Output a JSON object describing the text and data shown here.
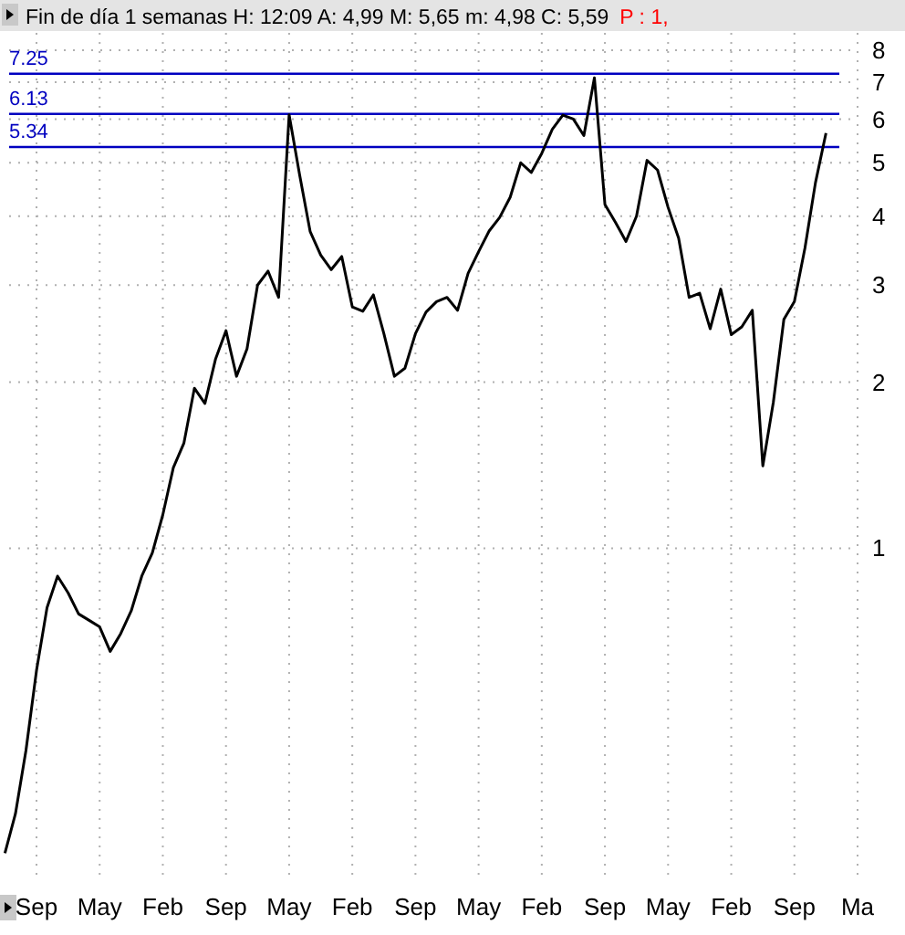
{
  "chart_data": {
    "type": "line",
    "title": "Fin de día 1 semanas H: 12:09 A: 4,99 M: 5,65 m: 4,98 C: 5,59",
    "subtitle": "P : 1,",
    "categories": [
      null,
      null,
      null,
      "Sep",
      null,
      null,
      null,
      null,
      null,
      "May",
      null,
      null,
      null,
      null,
      null,
      "Feb",
      null,
      null,
      null,
      null,
      null,
      "Sep",
      null,
      null,
      null,
      null,
      null,
      "May",
      null,
      null,
      null,
      null,
      null,
      "Feb",
      null,
      null,
      null,
      null,
      null,
      "Sep",
      null,
      null,
      null,
      null,
      null,
      "May",
      null,
      null,
      null,
      null,
      null,
      "Feb",
      null,
      null,
      null,
      null,
      null,
      "Sep",
      null,
      null,
      null,
      null,
      null,
      "May",
      null,
      null,
      null,
      null,
      null,
      "Feb",
      null,
      null,
      null,
      null,
      null,
      "Sep",
      null,
      null,
      null,
      null,
      null,
      "Ma"
    ],
    "series": [
      {
        "color": "#000000",
        "values": [
          0.28,
          0.33,
          0.43,
          0.6,
          0.78,
          0.89,
          0.83,
          0.76,
          0.74,
          0.72,
          0.65,
          0.7,
          0.77,
          0.89,
          0.98,
          1.15,
          1.4,
          1.55,
          1.95,
          1.83,
          2.2,
          2.48,
          2.05,
          2.3,
          3.0,
          3.18,
          2.85,
          6.11,
          4.75,
          3.75,
          3.4,
          3.2,
          3.38,
          2.74,
          2.69,
          2.88,
          2.45,
          2.05,
          2.12,
          2.45,
          2.68,
          2.8,
          2.85,
          2.7,
          3.15,
          3.45,
          3.76,
          3.98,
          4.33,
          5.0,
          4.8,
          5.2,
          5.75,
          6.1,
          6.0,
          5.6,
          7.13,
          4.2,
          3.9,
          3.6,
          4.0,
          5.05,
          4.85,
          4.15,
          3.65,
          2.85,
          2.9,
          2.5,
          2.95,
          2.44,
          2.52,
          2.7,
          1.41,
          1.84,
          2.6,
          2.8,
          3.5,
          4.6,
          5.66,
          null,
          null,
          null
        ]
      }
    ],
    "ylim": [
      0.25,
      8.6
    ],
    "yticks": [
      1,
      2,
      3,
      4,
      5,
      6,
      7,
      8
    ],
    "log": true,
    "grid": true,
    "ref_lines": [
      {
        "axis": "y",
        "value": 7.25,
        "label": "7.25",
        "color": "#0000c0"
      },
      {
        "axis": "y",
        "value": 6.13,
        "label": "6.13",
        "color": "#0000c0"
      },
      {
        "axis": "y",
        "value": 5.34,
        "label": "5.34",
        "color": "#0000c0"
      }
    ]
  }
}
